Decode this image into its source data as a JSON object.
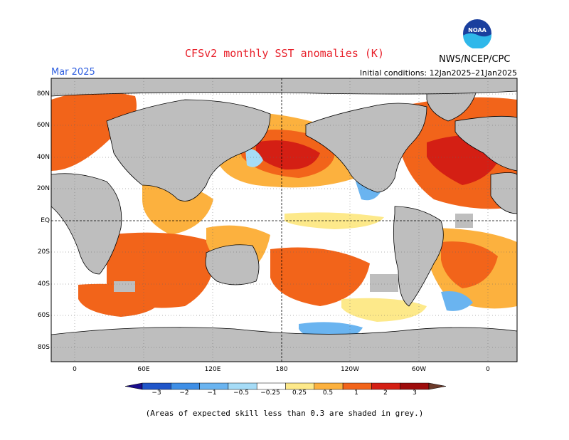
{
  "header": {
    "title": "CFSv2 monthly SST anomalies (K)",
    "month": "Mar 2025",
    "initial_conditions": "Initial conditions: 12Jan2025–21Jan2025",
    "organization": "NWS/NCEP/CPC",
    "logo_text": "NOAA"
  },
  "map": {
    "lat_labels": [
      "80N",
      "60N",
      "40N",
      "20N",
      "EQ",
      "20S",
      "40S",
      "60S",
      "80S"
    ],
    "lon_labels": [
      "0",
      "60E",
      "120E",
      "180",
      "120W",
      "60W",
      "0"
    ],
    "land_color": "#bebebe",
    "low_skill_color": "#bebebe"
  },
  "colorbar": {
    "labels": [
      "−3",
      "−2",
      "−1",
      "−0.5",
      "−0.25",
      "0.25",
      "0.5",
      "1",
      "2",
      "3"
    ],
    "colors": [
      "#1a0d8c",
      "#1f55c9",
      "#3f8fe6",
      "#6ab4f0",
      "#a6dcf7",
      "#ffffff",
      "#fde98a",
      "#fcb13e",
      "#f2641a",
      "#d41f14",
      "#9e0c0c",
      "#6b3a2a"
    ]
  },
  "footer": {
    "note": "(Areas of expected skill less than 0.3 are shaded in grey.)"
  }
}
